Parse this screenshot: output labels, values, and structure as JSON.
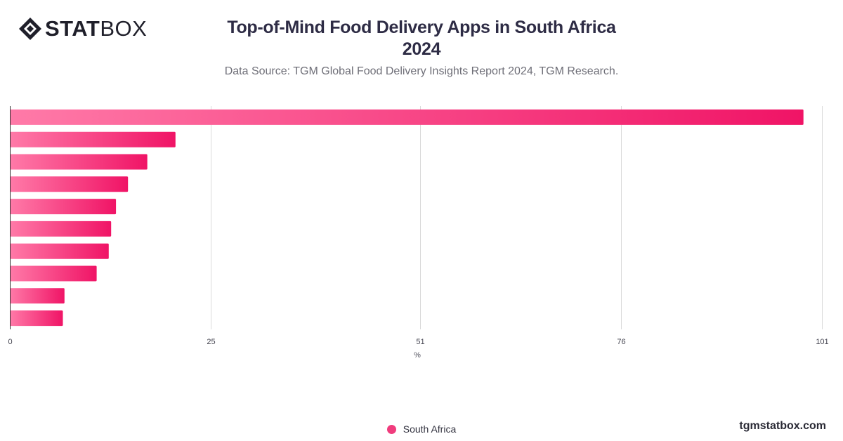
{
  "brand": {
    "logo_bold": "STAT",
    "logo_light": "BOX",
    "logo_icon": "diamond-logo-icon",
    "watermark": "tgmstatbox.com"
  },
  "colors": {
    "bar_start": "#ff7aa8",
    "bar_end": "#f01466",
    "grid": "#d9d9d9",
    "axis": "#333333",
    "title": "#2e2c45"
  },
  "chart_data": {
    "type": "bar",
    "orientation": "horizontal",
    "title": "Top-of-Mind Food Delivery Apps in South Africa 2024",
    "title_lines": [
      "Top-of-Mind Food Delivery Apps in South Africa",
      "2024"
    ],
    "subtitle": "Data Source: TGM Global Food Delivery Insights Report 2024, TGM Research.",
    "xlabel": "%",
    "ylabel": "",
    "xlim": [
      0,
      101
    ],
    "x_ticks": [
      0,
      25,
      51,
      76,
      101
    ],
    "categories": [
      "",
      "",
      "",
      "",
      "",
      "",
      "",
      "",
      "",
      ""
    ],
    "series": [
      {
        "name": "South Africa",
        "values": [
          98.7,
          20.6,
          17.1,
          14.7,
          13.2,
          12.6,
          12.3,
          10.8,
          6.8,
          6.6
        ]
      }
    ],
    "grid": true,
    "legend_position": "bottom-center"
  }
}
